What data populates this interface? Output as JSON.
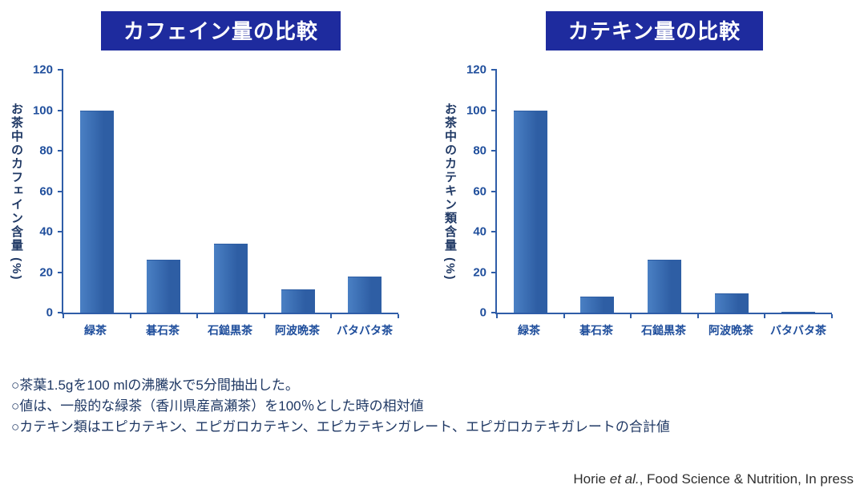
{
  "colors": {
    "title_bg": "#1e2b9e",
    "title_text": "#ffffff",
    "bar_fill_light": "#4a80c4",
    "bar_fill_dark": "#2e5ea4",
    "axis_line": "#2f5da8",
    "tick_text": "#1f4e9c",
    "ylabel_text": "#1f3864",
    "note_text": "#1f3864",
    "citation_text": "#2f2f2f"
  },
  "chart_data": [
    {
      "type": "bar",
      "title": "カフェイン量の比較",
      "ylabel": "お茶中のカフェイン含量 (%)",
      "xlabel": "",
      "categories": [
        "緑茶",
        "碁石茶",
        "石鎚黒茶",
        "阿波晩茶",
        "バタバタ茶"
      ],
      "values": [
        100,
        26,
        34,
        11.5,
        18
      ],
      "ylim": [
        0,
        120
      ],
      "yticks": [
        0,
        20,
        40,
        60,
        80,
        100,
        120
      ],
      "grid": false,
      "legend": "none"
    },
    {
      "type": "bar",
      "title": "カテキン量の比較",
      "ylabel": "お茶中のカテキン類含量 (%)",
      "xlabel": "",
      "categories": [
        "緑茶",
        "碁石茶",
        "石鎚黒茶",
        "阿波晩茶",
        "バタバタ茶"
      ],
      "values": [
        100,
        8,
        26,
        9.5,
        0.5
      ],
      "ylim": [
        0,
        120
      ],
      "yticks": [
        0,
        20,
        40,
        60,
        80,
        100,
        120
      ],
      "grid": false,
      "legend": "none"
    }
  ],
  "notes": [
    "○茶葉1.5gを100 mlの沸騰水で5分間抽出した。",
    "○値は、一般的な緑茶（香川県産高瀬茶）を100％とした時の相対値",
    "○カテキン類はエピカテキン、エピガロカテキン、エピカテキンガレート、エピガロカテキガレートの合計値"
  ],
  "citation": {
    "prefix": "Horie ",
    "italic": "et al.",
    "suffix": ", Food Science & Nutrition, In press"
  }
}
